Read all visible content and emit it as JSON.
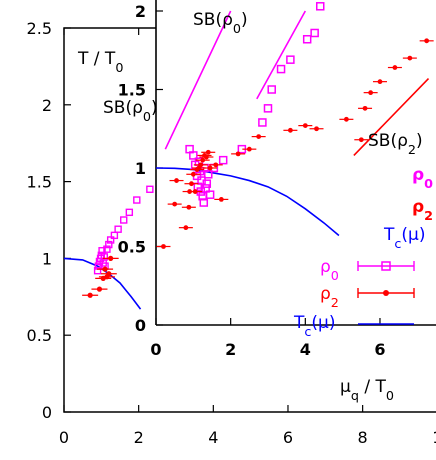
{
  "chart_data": [
    {
      "type": "scatter",
      "title": "",
      "xlabel": "μ_q / T_0",
      "ylabel": "T / T_0",
      "xlim": [
        0,
        10
      ],
      "ylim": [
        0,
        2.5
      ],
      "x_ticks": [
        "0",
        "2",
        "4",
        "6",
        "8",
        "1"
      ],
      "y_ticks": [
        "0",
        "0.5",
        "1",
        "1.5",
        "2",
        "2.5"
      ],
      "legend_position": "bottom-right",
      "legend": [
        {
          "label": "ρ_0",
          "color": "#ff00ff",
          "marker": "open-square-errorbar"
        },
        {
          "label": "ρ_2",
          "color": "#ff0000",
          "marker": "filled-circle-errorbar"
        },
        {
          "label": "T_c(μ)",
          "color": "#0000ff",
          "marker": "line"
        }
      ],
      "series": [
        {
          "name": "ρ_0",
          "color": "#ff00ff",
          "x": [
            0.9,
            0.92,
            0.95,
            0.98,
            1.0,
            1.02,
            1.05,
            1.08,
            1.1,
            1.15,
            1.2,
            1.25,
            1.35,
            1.45,
            1.6,
            1.75,
            1.95,
            2.3
          ],
          "y": [
            0.92,
            0.95,
            0.98,
            1.0,
            1.02,
            1.05,
            0.97,
            1.01,
            0.95,
            1.06,
            1.09,
            1.12,
            1.15,
            1.19,
            1.25,
            1.3,
            1.38,
            1.45
          ]
        },
        {
          "name": "ρ_2",
          "color": "#ff0000",
          "x": [
            0.7,
            0.95,
            1.05,
            1.1,
            1.15,
            1.2,
            1.25
          ],
          "y": [
            0.76,
            0.8,
            0.87,
            0.93,
            0.88,
            0.9,
            1.0
          ]
        }
      ],
      "curves": [
        {
          "name": "T_c(μ)",
          "color": "#0000ff",
          "x": [
            0,
            0.5,
            0.9,
            1.2,
            1.5,
            1.8,
            2.05
          ],
          "y": [
            1.0,
            0.99,
            0.95,
            0.9,
            0.84,
            0.75,
            0.67
          ]
        }
      ]
    },
    {
      "type": "scatter",
      "title": "",
      "position": "inset",
      "xlabel": "",
      "ylabel": "",
      "xlim": [
        0,
        7.3
      ],
      "ylim": [
        0,
        2.1
      ],
      "x_ticks": [
        "0",
        "2",
        "4",
        "6"
      ],
      "y_ticks": [
        "0",
        "0.5",
        "1",
        "1.5",
        "2"
      ],
      "legend": [
        {
          "label": "ρ_0",
          "color": "#ff00ff"
        },
        {
          "label": "ρ_2",
          "color": "#ff0000"
        },
        {
          "label": "T_c(μ)",
          "color": "#0000ff"
        }
      ],
      "annotations": [
        "SB(ρ_0)",
        "SB(ρ_0)",
        "SB(ρ_2)"
      ],
      "series": [
        {
          "name": "ρ_0",
          "color": "#ff00ff",
          "x": [
            0.9,
            1.0,
            1.05,
            1.1,
            1.12,
            1.15,
            1.18,
            1.2,
            1.22,
            1.25,
            1.28,
            1.3,
            1.33,
            1.36,
            1.4,
            1.45,
            1.55,
            1.8,
            2.3,
            2.85,
            3.0,
            3.1,
            3.35,
            3.6,
            4.05,
            4.25,
            4.4
          ],
          "y": [
            1.12,
            1.08,
            1.02,
            0.95,
            0.88,
            1.04,
            0.98,
            0.85,
            0.92,
            0.82,
            0.78,
            1.0,
            0.87,
            0.9,
            0.96,
            0.83,
            1.0,
            1.05,
            1.12,
            1.29,
            1.38,
            1.5,
            1.63,
            1.69,
            1.82,
            1.86,
            2.03
          ]
        },
        {
          "name": "ρ_2",
          "color": "#ff0000",
          "x": [
            0.2,
            0.5,
            0.55,
            0.8,
            0.88,
            0.9,
            0.95,
            1.0,
            1.05,
            1.1,
            1.15,
            1.2,
            1.25,
            1.3,
            1.35,
            1.4,
            1.45,
            1.6,
            1.75,
            2.2,
            2.5,
            2.75,
            3.6,
            4.0,
            4.3,
            5.1,
            5.5,
            5.6,
            5.75,
            6.0,
            6.4,
            6.8,
            7.25
          ],
          "y": [
            0.5,
            0.77,
            0.92,
            0.62,
            0.75,
            0.85,
            0.9,
            0.96,
            0.85,
            0.99,
            1.0,
            1.02,
            1.05,
            1.08,
            1.07,
            1.1,
            1.0,
            1.02,
            0.8,
            1.09,
            1.12,
            1.2,
            1.24,
            1.27,
            1.25,
            1.31,
            1.18,
            1.38,
            1.48,
            1.55,
            1.64,
            1.7,
            1.81
          ]
        }
      ],
      "curves": [
        {
          "name": "T_c(μ)",
          "color": "#0000ff",
          "x": [
            0,
            0.5,
            1.0,
            1.5,
            2.0,
            2.5,
            3.0,
            3.5,
            4.0,
            4.5,
            4.9
          ],
          "y": [
            1.0,
            0.998,
            0.99,
            0.97,
            0.95,
            0.92,
            0.88,
            0.82,
            0.74,
            0.65,
            0.57
          ]
        },
        {
          "name": "SB(ρ_0)",
          "color": "#ff00ff",
          "x": [
            0.25,
            2.0
          ],
          "y": [
            1.12,
            2.0
          ]
        },
        {
          "name": "SB(ρ_0)",
          "color": "#ff00ff",
          "x": [
            2.7,
            4.0
          ],
          "y": [
            1.44,
            2.0
          ]
        },
        {
          "name": "SB(ρ_2)",
          "color": "#ff0000",
          "x": [
            5.3,
            7.3
          ],
          "y": [
            1.08,
            1.57
          ]
        }
      ]
    }
  ]
}
